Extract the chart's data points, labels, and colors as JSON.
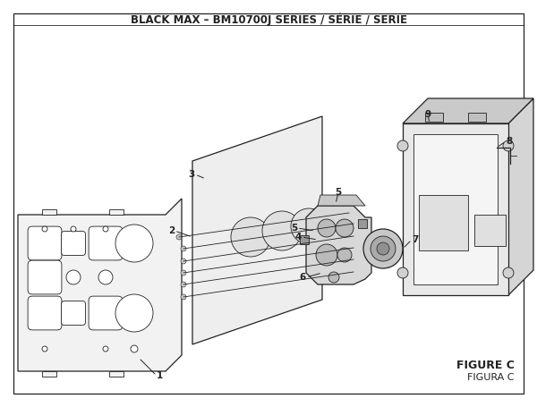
{
  "title": "BLACK MAX – BM10700J SERIES / SÉRIE / SERIE",
  "figure_label": "FIGURE C",
  "figure_label2": "FIGURA C",
  "bg_color": "#ffffff",
  "line_color": "#222222",
  "text_color": "#222222",
  "title_fontsize": 8.5,
  "label_fontsize": 7.5,
  "figsize": [
    6.0,
    4.55
  ],
  "dpi": 100
}
